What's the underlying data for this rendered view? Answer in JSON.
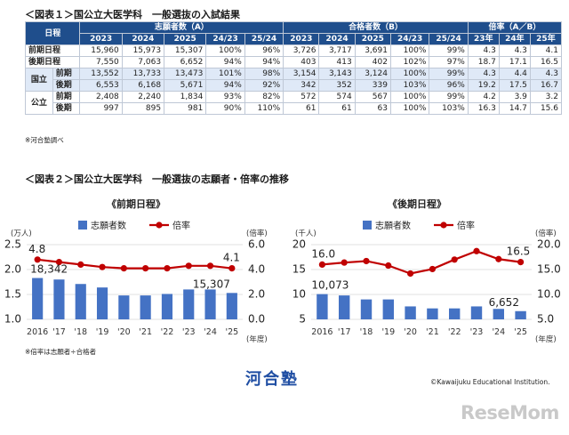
{
  "figure1": {
    "title": "＜図表１＞国公立大医学科　一般選抜の入試結果",
    "hdr_nittei": "日程",
    "hdr_applicants": "志願者数（A）",
    "hdr_passers": "合格者数（B）",
    "hdr_ratio": "倍率（A／B）",
    "sub_headers": [
      "2023",
      "2024",
      "2025",
      "24/23",
      "25/24",
      "2023",
      "2024",
      "2025",
      "24/23",
      "25/24",
      "23年",
      "24年",
      "25年"
    ],
    "rows": [
      {
        "label": "前期日程",
        "cells": [
          "15,960",
          "15,973",
          "15,307",
          "100%",
          "96%",
          "3,726",
          "3,717",
          "3,691",
          "100%",
          "99%",
          "4.3",
          "4.3",
          "4.1"
        ]
      },
      {
        "label": "後期日程",
        "cells": [
          "7,550",
          "7,063",
          "6,652",
          "94%",
          "94%",
          "403",
          "413",
          "402",
          "102%",
          "97%",
          "18.7",
          "17.1",
          "16.5"
        ]
      }
    ],
    "groups": [
      {
        "label": "国立",
        "rows": [
          {
            "sub": "前期",
            "cells": [
              "13,552",
              "13,733",
              "13,473",
              "101%",
              "98%",
              "3,154",
              "3,143",
              "3,124",
              "100%",
              "99%",
              "4.3",
              "4.4",
              "4.3"
            ]
          },
          {
            "sub": "後期",
            "cells": [
              "6,553",
              "6,168",
              "5,671",
              "94%",
              "92%",
              "342",
              "352",
              "339",
              "103%",
              "96%",
              "19.2",
              "17.5",
              "16.7"
            ]
          }
        ]
      },
      {
        "label": "公立",
        "rows": [
          {
            "sub": "前期",
            "cells": [
              "2,408",
              "2,240",
              "1,834",
              "93%",
              "82%",
              "572",
              "574",
              "567",
              "100%",
              "99%",
              "4.2",
              "3.9",
              "3.2"
            ]
          },
          {
            "sub": "後期",
            "cells": [
              "997",
              "895",
              "981",
              "90%",
              "110%",
              "61",
              "61",
              "63",
              "100%",
              "103%",
              "16.3",
              "14.7",
              "15.6"
            ]
          }
        ]
      }
    ],
    "note": "※河合塾調べ"
  },
  "figure2": {
    "title": "＜図表２＞国公立大医学科　一般選抜の志願者・倍率の推移",
    "note": "※倍率は志願者÷合格者"
  },
  "footer": {
    "logo": "河合塾",
    "copyright": "©Kawaijuku Educational Institution.",
    "brand": "ReseMom"
  },
  "chart_data": [
    {
      "type": "bar",
      "title": "《前期日程》",
      "categories": [
        "2016",
        "'17",
        "'18",
        "'19",
        "'20",
        "'21",
        "'22",
        "'23",
        "'24",
        "'25"
      ],
      "x_unit": "(年度)",
      "series": [
        {
          "name": "志願者数",
          "axis": "left",
          "type": "bar",
          "values": [
            1.83,
            1.8,
            1.71,
            1.64,
            1.48,
            1.48,
            1.51,
            1.6,
            1.6,
            1.53
          ]
        },
        {
          "name": "倍率",
          "axis": "right",
          "type": "line",
          "values": [
            4.8,
            4.6,
            4.4,
            4.2,
            4.1,
            4.1,
            4.1,
            4.3,
            4.3,
            4.1
          ]
        }
      ],
      "left_axis": {
        "unit": "(万人)",
        "range": [
          1.0,
          2.5
        ],
        "ticks": [
          "1.0",
          "1.5",
          "2.0",
          "2.5"
        ]
      },
      "right_axis": {
        "unit": "(倍率)",
        "range": [
          0.0,
          6.0
        ],
        "ticks": [
          "0.0",
          "2.0",
          "4.0",
          "6.0"
        ]
      },
      "annotations": [
        "4.8",
        "18,342",
        "4.1",
        "15,307"
      ],
      "colors": {
        "bar": "#4472c4",
        "line": "#c00000"
      },
      "legend": "top"
    },
    {
      "type": "bar",
      "title": "《後期日程》",
      "categories": [
        "2016",
        "'17",
        "'18",
        "'19",
        "'20",
        "'21",
        "'22",
        "'23",
        "'24",
        "'25"
      ],
      "x_unit": "(年度)",
      "series": [
        {
          "name": "志願者数",
          "axis": "left",
          "type": "bar",
          "values": [
            10.07,
            9.8,
            9.0,
            9.0,
            7.6,
            7.2,
            7.2,
            7.6,
            7.1,
            6.65
          ]
        },
        {
          "name": "倍率",
          "axis": "right",
          "type": "line",
          "values": [
            16.0,
            16.4,
            16.7,
            15.8,
            14.2,
            15.1,
            17.0,
            18.7,
            17.1,
            16.5
          ]
        }
      ],
      "left_axis": {
        "unit": "(千人)",
        "range": [
          5,
          20
        ],
        "ticks": [
          "5",
          "10",
          "15",
          "20"
        ]
      },
      "right_axis": {
        "unit": "(倍率)",
        "range": [
          5.0,
          20.0
        ],
        "ticks": [
          "5.0",
          "10.0",
          "15.0",
          "20.0"
        ]
      },
      "annotations": [
        "16.0",
        "10,073",
        "16.5",
        "6,652"
      ],
      "colors": {
        "bar": "#4472c4",
        "line": "#c00000"
      },
      "legend": "top"
    }
  ]
}
